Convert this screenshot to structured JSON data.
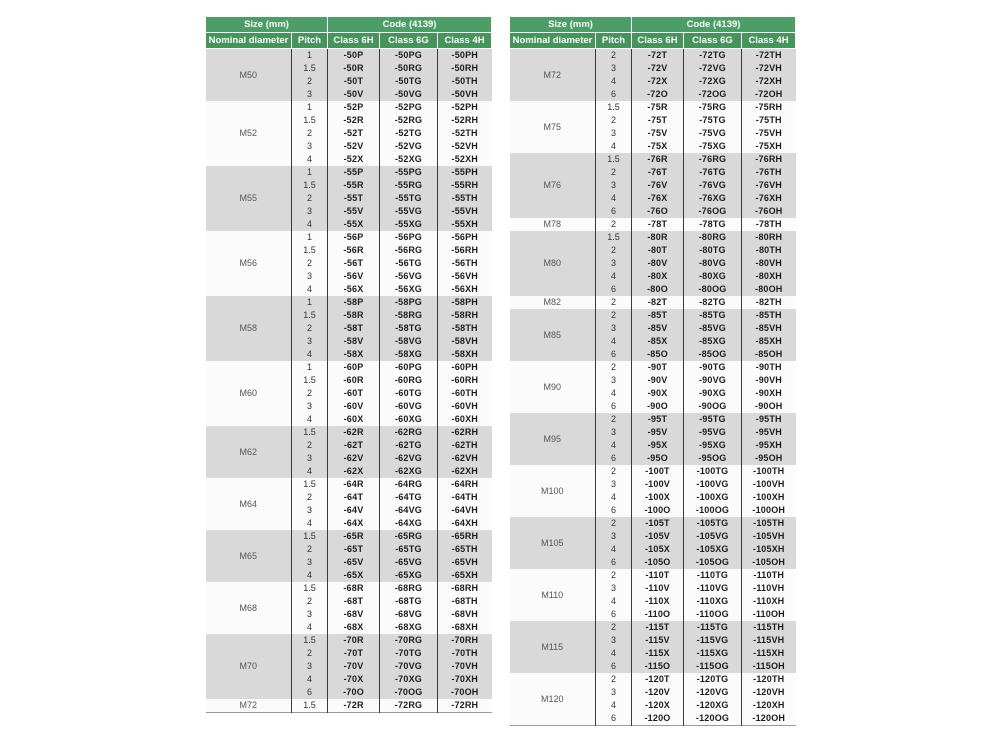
{
  "colors": {
    "header_green_top": "#4c9d66",
    "header_green_columns": "#45945a",
    "row_shade_gray": "#d9d9d9",
    "row_shade_white": "#fbfbfb"
  },
  "tables": [
    {
      "id": "left",
      "header": {
        "size_label": "Size (mm)",
        "code_label": "Code (4139)"
      },
      "columns": [
        "Nominal diameter",
        "Pitch",
        "Class 6H",
        "Class 6G",
        "Class 4H"
      ],
      "groups": [
        {
          "diameter": "M50",
          "rows": [
            [
              "1",
              "-50P",
              "-50PG",
              "-50PH"
            ],
            [
              "1.5",
              "-50R",
              "-50RG",
              "-50RH"
            ],
            [
              "2",
              "-50T",
              "-50TG",
              "-50TH"
            ],
            [
              "3",
              "-50V",
              "-50VG",
              "-50VH"
            ]
          ]
        },
        {
          "diameter": "M52",
          "rows": [
            [
              "1",
              "-52P",
              "-52PG",
              "-52PH"
            ],
            [
              "1.5",
              "-52R",
              "-52RG",
              "-52RH"
            ],
            [
              "2",
              "-52T",
              "-52TG",
              "-52TH"
            ],
            [
              "3",
              "-52V",
              "-52VG",
              "-52VH"
            ],
            [
              "4",
              "-52X",
              "-52XG",
              "-52XH"
            ]
          ]
        },
        {
          "diameter": "M55",
          "rows": [
            [
              "1",
              "-55P",
              "-55PG",
              "-55PH"
            ],
            [
              "1.5",
              "-55R",
              "-55RG",
              "-55RH"
            ],
            [
              "2",
              "-55T",
              "-55TG",
              "-55TH"
            ],
            [
              "3",
              "-55V",
              "-55VG",
              "-55VH"
            ],
            [
              "4",
              "-55X",
              "-55XG",
              "-55XH"
            ]
          ]
        },
        {
          "diameter": "M56",
          "rows": [
            [
              "1",
              "-56P",
              "-56PG",
              "-56PH"
            ],
            [
              "1.5",
              "-56R",
              "-56RG",
              "-56RH"
            ],
            [
              "2",
              "-56T",
              "-56TG",
              "-56TH"
            ],
            [
              "3",
              "-56V",
              "-56VG",
              "-56VH"
            ],
            [
              "4",
              "-56X",
              "-56XG",
              "-56XH"
            ]
          ]
        },
        {
          "diameter": "M58",
          "rows": [
            [
              "1",
              "-58P",
              "-58PG",
              "-58PH"
            ],
            [
              "1.5",
              "-58R",
              "-58RG",
              "-58RH"
            ],
            [
              "2",
              "-58T",
              "-58TG",
              "-58TH"
            ],
            [
              "3",
              "-58V",
              "-58VG",
              "-58VH"
            ],
            [
              "4",
              "-58X",
              "-58XG",
              "-58XH"
            ]
          ]
        },
        {
          "diameter": "M60",
          "rows": [
            [
              "1",
              "-60P",
              "-60PG",
              "-60PH"
            ],
            [
              "1.5",
              "-60R",
              "-60RG",
              "-60RH"
            ],
            [
              "2",
              "-60T",
              "-60TG",
              "-60TH"
            ],
            [
              "3",
              "-60V",
              "-60VG",
              "-60VH"
            ],
            [
              "4",
              "-60X",
              "-60XG",
              "-60XH"
            ]
          ]
        },
        {
          "diameter": "M62",
          "rows": [
            [
              "1.5",
              "-62R",
              "-62RG",
              "-62RH"
            ],
            [
              "2",
              "-62T",
              "-62TG",
              "-62TH"
            ],
            [
              "3",
              "-62V",
              "-62VG",
              "-62VH"
            ],
            [
              "4",
              "-62X",
              "-62XG",
              "-62XH"
            ]
          ]
        },
        {
          "diameter": "M64",
          "rows": [
            [
              "1.5",
              "-64R",
              "-64RG",
              "-64RH"
            ],
            [
              "2",
              "-64T",
              "-64TG",
              "-64TH"
            ],
            [
              "3",
              "-64V",
              "-64VG",
              "-64VH"
            ],
            [
              "4",
              "-64X",
              "-64XG",
              "-64XH"
            ]
          ]
        },
        {
          "diameter": "M65",
          "rows": [
            [
              "1.5",
              "-65R",
              "-65RG",
              "-65RH"
            ],
            [
              "2",
              "-65T",
              "-65TG",
              "-65TH"
            ],
            [
              "3",
              "-65V",
              "-65VG",
              "-65VH"
            ],
            [
              "4",
              "-65X",
              "-65XG",
              "-65XH"
            ]
          ]
        },
        {
          "diameter": "M68",
          "rows": [
            [
              "1.5",
              "-68R",
              "-68RG",
              "-68RH"
            ],
            [
              "2",
              "-68T",
              "-68TG",
              "-68TH"
            ],
            [
              "3",
              "-68V",
              "-68VG",
              "-68VH"
            ],
            [
              "4",
              "-68X",
              "-68XG",
              "-68XH"
            ]
          ]
        },
        {
          "diameter": "M70",
          "rows": [
            [
              "1.5",
              "-70R",
              "-70RG",
              "-70RH"
            ],
            [
              "2",
              "-70T",
              "-70TG",
              "-70TH"
            ],
            [
              "3",
              "-70V",
              "-70VG",
              "-70VH"
            ],
            [
              "4",
              "-70X",
              "-70XG",
              "-70XH"
            ],
            [
              "6",
              "-70O",
              "-70OG",
              "-70OH"
            ]
          ]
        },
        {
          "diameter": "M72",
          "rows": [
            [
              "1.5",
              "-72R",
              "-72RG",
              "-72RH"
            ]
          ]
        }
      ]
    },
    {
      "id": "right",
      "header": {
        "size_label": "Size (mm)",
        "code_label": "Code (4139)"
      },
      "columns": [
        "Nominal diameter",
        "Pitch",
        "Class 6H",
        "Class 6G",
        "Class 4H"
      ],
      "groups": [
        {
          "diameter": "M72",
          "rows": [
            [
              "2",
              "-72T",
              "-72TG",
              "-72TH"
            ],
            [
              "3",
              "-72V",
              "-72VG",
              "-72VH"
            ],
            [
              "4",
              "-72X",
              "-72XG",
              "-72XH"
            ],
            [
              "6",
              "-72O",
              "-72OG",
              "-72OH"
            ]
          ]
        },
        {
          "diameter": "M75",
          "rows": [
            [
              "1.5",
              "-75R",
              "-75RG",
              "-75RH"
            ],
            [
              "2",
              "-75T",
              "-75TG",
              "-75TH"
            ],
            [
              "3",
              "-75V",
              "-75VG",
              "-75VH"
            ],
            [
              "4",
              "-75X",
              "-75XG",
              "-75XH"
            ]
          ]
        },
        {
          "diameter": "M76",
          "rows": [
            [
              "1.5",
              "-76R",
              "-76RG",
              "-76RH"
            ],
            [
              "2",
              "-76T",
              "-76TG",
              "-76TH"
            ],
            [
              "3",
              "-76V",
              "-76VG",
              "-76VH"
            ],
            [
              "4",
              "-76X",
              "-76XG",
              "-76XH"
            ],
            [
              "6",
              "-76O",
              "-76OG",
              "-76OH"
            ]
          ]
        },
        {
          "diameter": "M78",
          "rows": [
            [
              "2",
              "-78T",
              "-78TG",
              "-78TH"
            ]
          ]
        },
        {
          "diameter": "M80",
          "rows": [
            [
              "1.5",
              "-80R",
              "-80RG",
              "-80RH"
            ],
            [
              "2",
              "-80T",
              "-80TG",
              "-80TH"
            ],
            [
              "3",
              "-80V",
              "-80VG",
              "-80VH"
            ],
            [
              "4",
              "-80X",
              "-80XG",
              "-80XH"
            ],
            [
              "6",
              "-80O",
              "-80OG",
              "-80OH"
            ]
          ]
        },
        {
          "diameter": "M82",
          "rows": [
            [
              "2",
              "-82T",
              "-82TG",
              "-82TH"
            ]
          ]
        },
        {
          "diameter": "M85",
          "rows": [
            [
              "2",
              "-85T",
              "-85TG",
              "-85TH"
            ],
            [
              "3",
              "-85V",
              "-85VG",
              "-85VH"
            ],
            [
              "4",
              "-85X",
              "-85XG",
              "-85XH"
            ],
            [
              "6",
              "-85O",
              "-85OG",
              "-85OH"
            ]
          ]
        },
        {
          "diameter": "M90",
          "rows": [
            [
              "2",
              "-90T",
              "-90TG",
              "-90TH"
            ],
            [
              "3",
              "-90V",
              "-90VG",
              "-90VH"
            ],
            [
              "4",
              "-90X",
              "-90XG",
              "-90XH"
            ],
            [
              "6",
              "-90O",
              "-90OG",
              "-90OH"
            ]
          ]
        },
        {
          "diameter": "M95",
          "rows": [
            [
              "2",
              "-95T",
              "-95TG",
              "-95TH"
            ],
            [
              "3",
              "-95V",
              "-95VG",
              "-95VH"
            ],
            [
              "4",
              "-95X",
              "-95XG",
              "-95XH"
            ],
            [
              "6",
              "-95O",
              "-95OG",
              "-95OH"
            ]
          ]
        },
        {
          "diameter": "M100",
          "rows": [
            [
              "2",
              "-100T",
              "-100TG",
              "-100TH"
            ],
            [
              "3",
              "-100V",
              "-100VG",
              "-100VH"
            ],
            [
              "4",
              "-100X",
              "-100XG",
              "-100XH"
            ],
            [
              "6",
              "-100O",
              "-100OG",
              "-100OH"
            ]
          ]
        },
        {
          "diameter": "M105",
          "rows": [
            [
              "2",
              "-105T",
              "-105TG",
              "-105TH"
            ],
            [
              "3",
              "-105V",
              "-105VG",
              "-105VH"
            ],
            [
              "4",
              "-105X",
              "-105XG",
              "-105XH"
            ],
            [
              "6",
              "-105O",
              "-105OG",
              "-105OH"
            ]
          ]
        },
        {
          "diameter": "M110",
          "rows": [
            [
              "2",
              "-110T",
              "-110TG",
              "-110TH"
            ],
            [
              "3",
              "-110V",
              "-110VG",
              "-110VH"
            ],
            [
              "4",
              "-110X",
              "-110XG",
              "-110XH"
            ],
            [
              "6",
              "-110O",
              "-110OG",
              "-110OH"
            ]
          ]
        },
        {
          "diameter": "M115",
          "rows": [
            [
              "2",
              "-115T",
              "-115TG",
              "-115TH"
            ],
            [
              "3",
              "-115V",
              "-115VG",
              "-115VH"
            ],
            [
              "4",
              "-115X",
              "-115XG",
              "-115XH"
            ],
            [
              "6",
              "-115O",
              "-115OG",
              "-115OH"
            ]
          ]
        },
        {
          "diameter": "M120",
          "rows": [
            [
              "2",
              "-120T",
              "-120TG",
              "-120TH"
            ],
            [
              "3",
              "-120V",
              "-120VG",
              "-120VH"
            ],
            [
              "4",
              "-120X",
              "-120XG",
              "-120XH"
            ],
            [
              "6",
              "-120O",
              "-120OG",
              "-120OH"
            ]
          ]
        }
      ]
    }
  ]
}
